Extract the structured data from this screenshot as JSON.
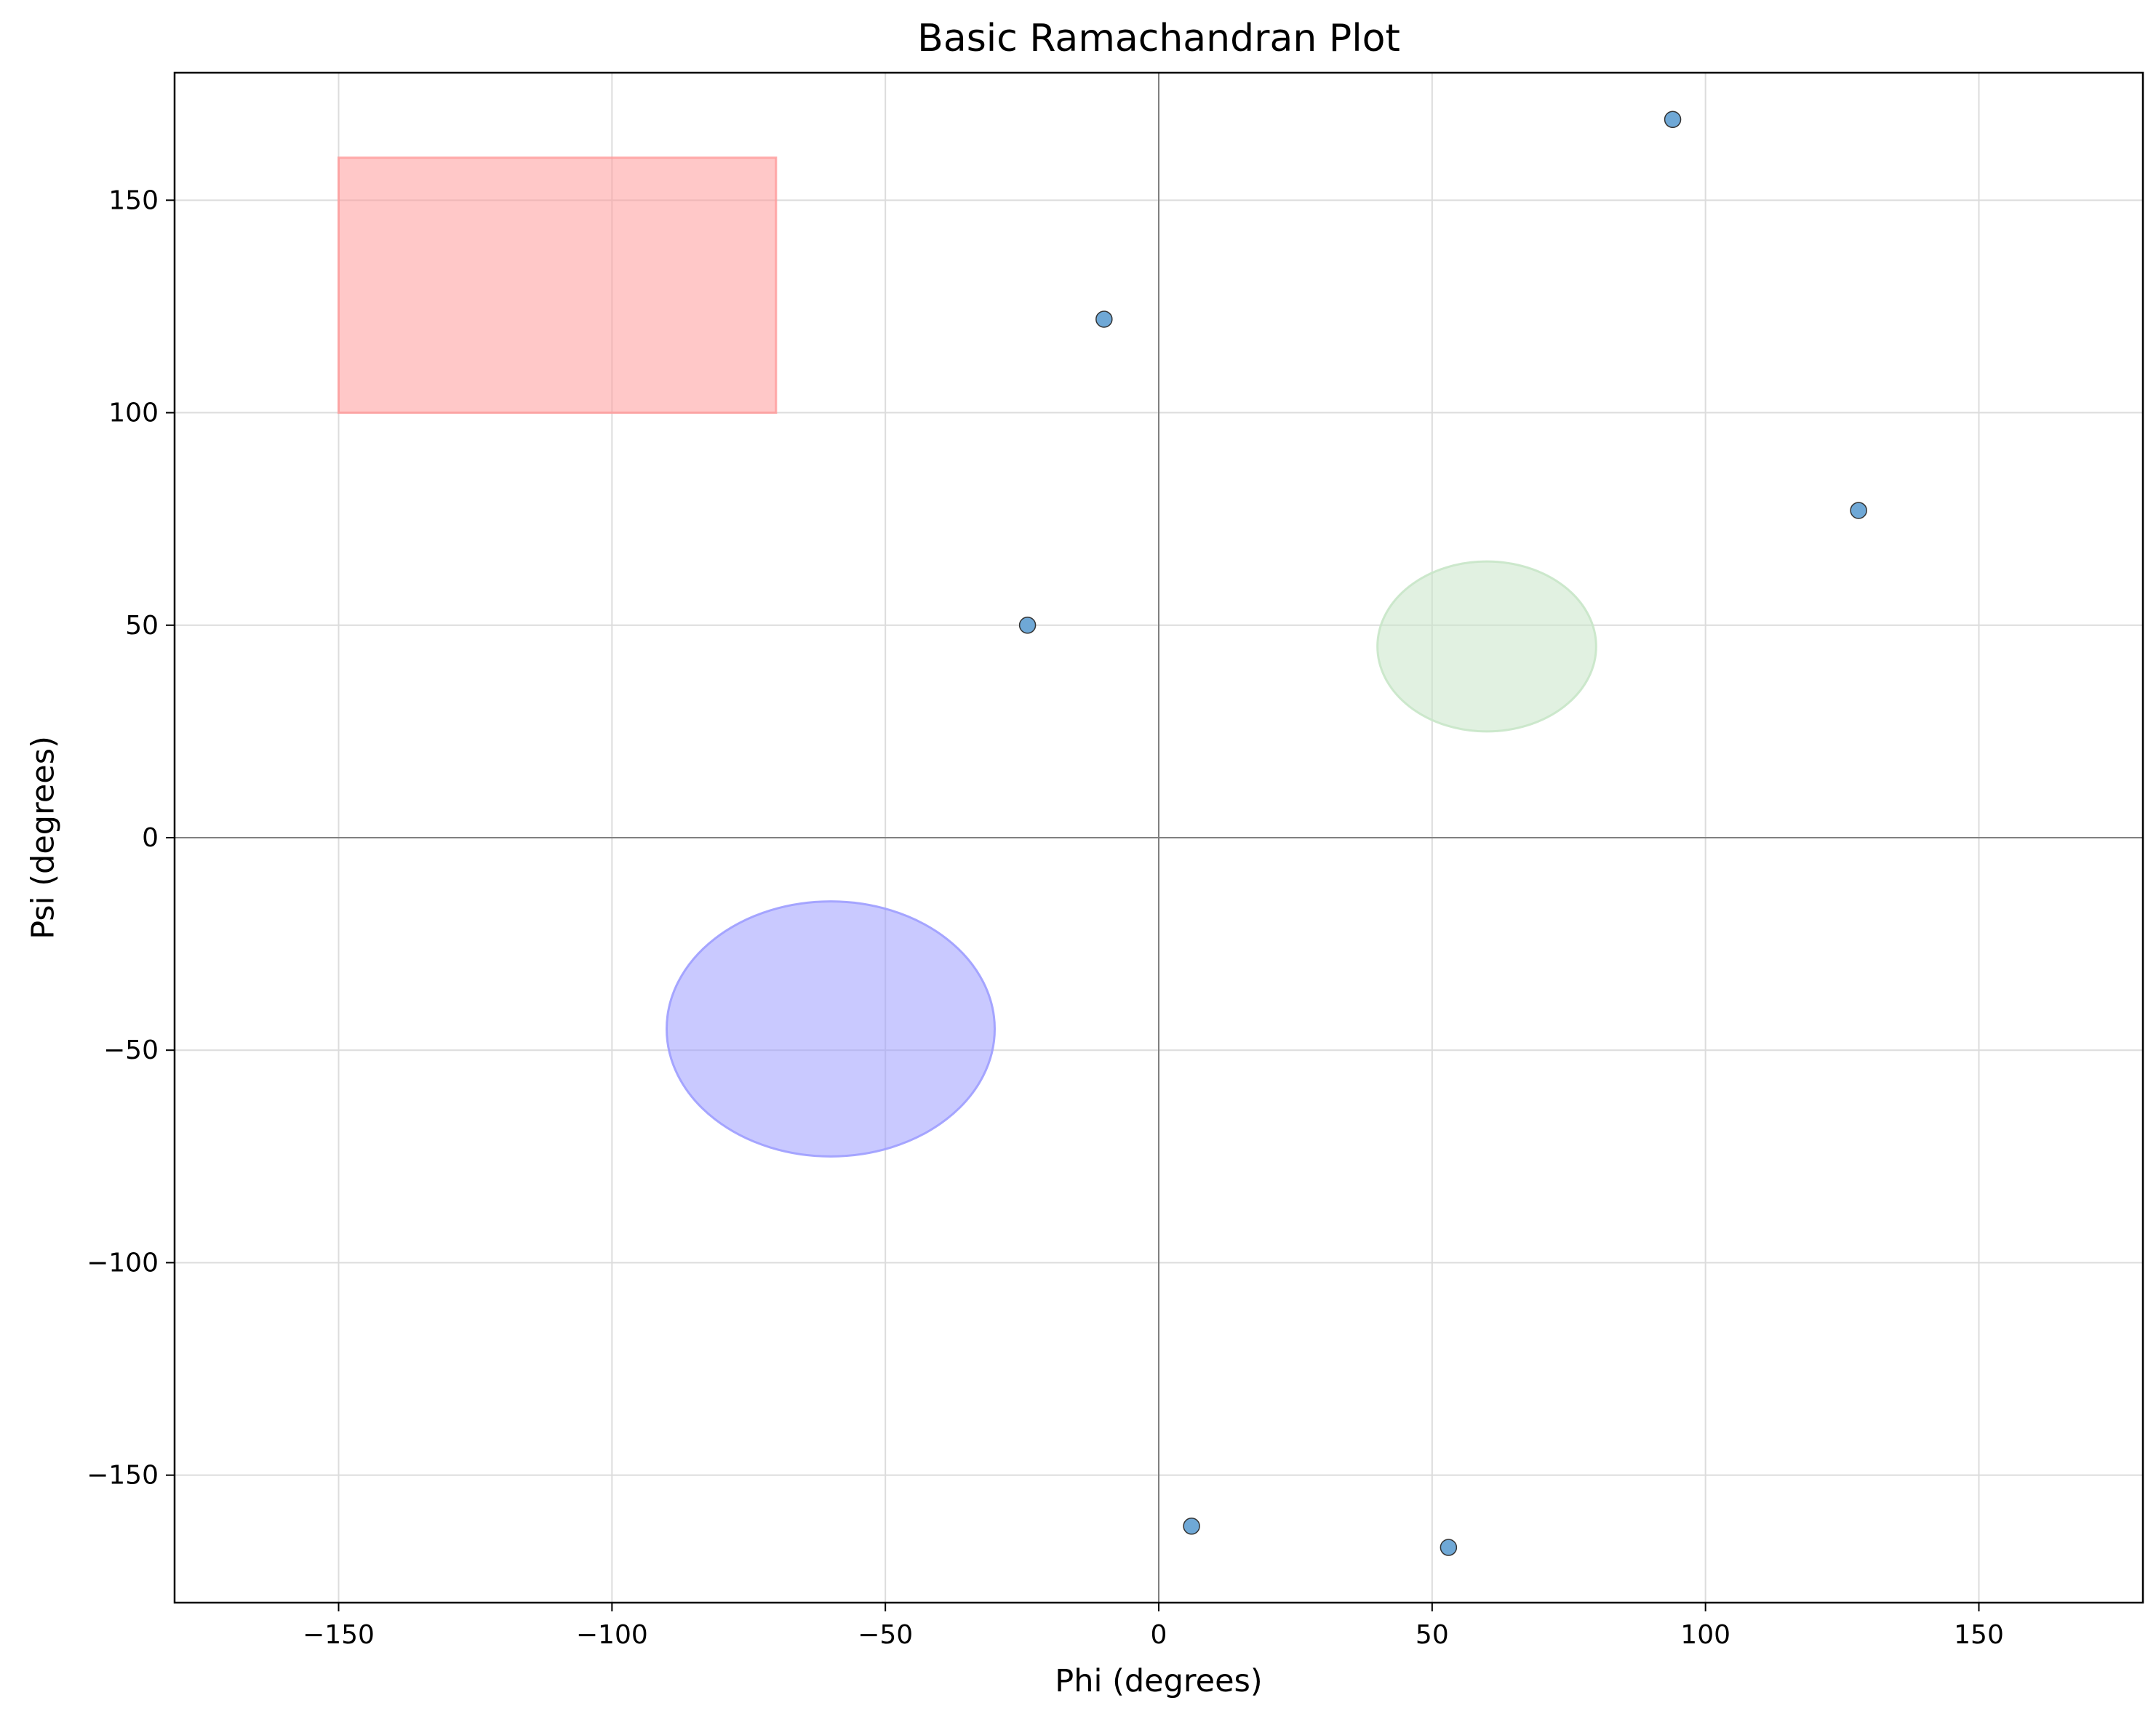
{
  "chart_data": {
    "type": "scatter",
    "title": "Basic Ramachandran Plot",
    "xlabel": "Phi (degrees)",
    "ylabel": "Psi (degrees)",
    "xlim": [
      -180,
      180
    ],
    "ylim": [
      -180,
      180
    ],
    "xticks": [
      -150,
      -100,
      -50,
      0,
      50,
      100,
      150
    ],
    "yticks": [
      -150,
      -100,
      -50,
      0,
      50,
      100,
      150
    ],
    "xtick_labels": [
      "−150",
      "−100",
      "−50",
      "0",
      "50",
      "100",
      "150"
    ],
    "ytick_labels": [
      "−150",
      "−100",
      "−50",
      "0",
      "50",
      "100",
      "150"
    ],
    "grid": true,
    "zero_lines": true,
    "points": [
      {
        "x": 94,
        "y": 169
      },
      {
        "x": -10,
        "y": 122
      },
      {
        "x": 128,
        "y": 77
      },
      {
        "x": -24,
        "y": 50
      },
      {
        "x": 6,
        "y": -162
      },
      {
        "x": 53,
        "y": -167
      }
    ],
    "point_color": "#6fa8d6",
    "regions": [
      {
        "shape": "rect",
        "phi_range": [
          -150,
          -70
        ],
        "psi_range": [
          100,
          160
        ],
        "color": "#ff9a9a"
      },
      {
        "shape": "ellipse",
        "center": [
          -60,
          -45
        ],
        "radii": [
          30,
          30
        ],
        "color": "#9d9dff"
      },
      {
        "shape": "ellipse",
        "center": [
          60,
          45
        ],
        "radii": [
          20,
          20
        ],
        "color": "#c8e6c8"
      }
    ]
  }
}
